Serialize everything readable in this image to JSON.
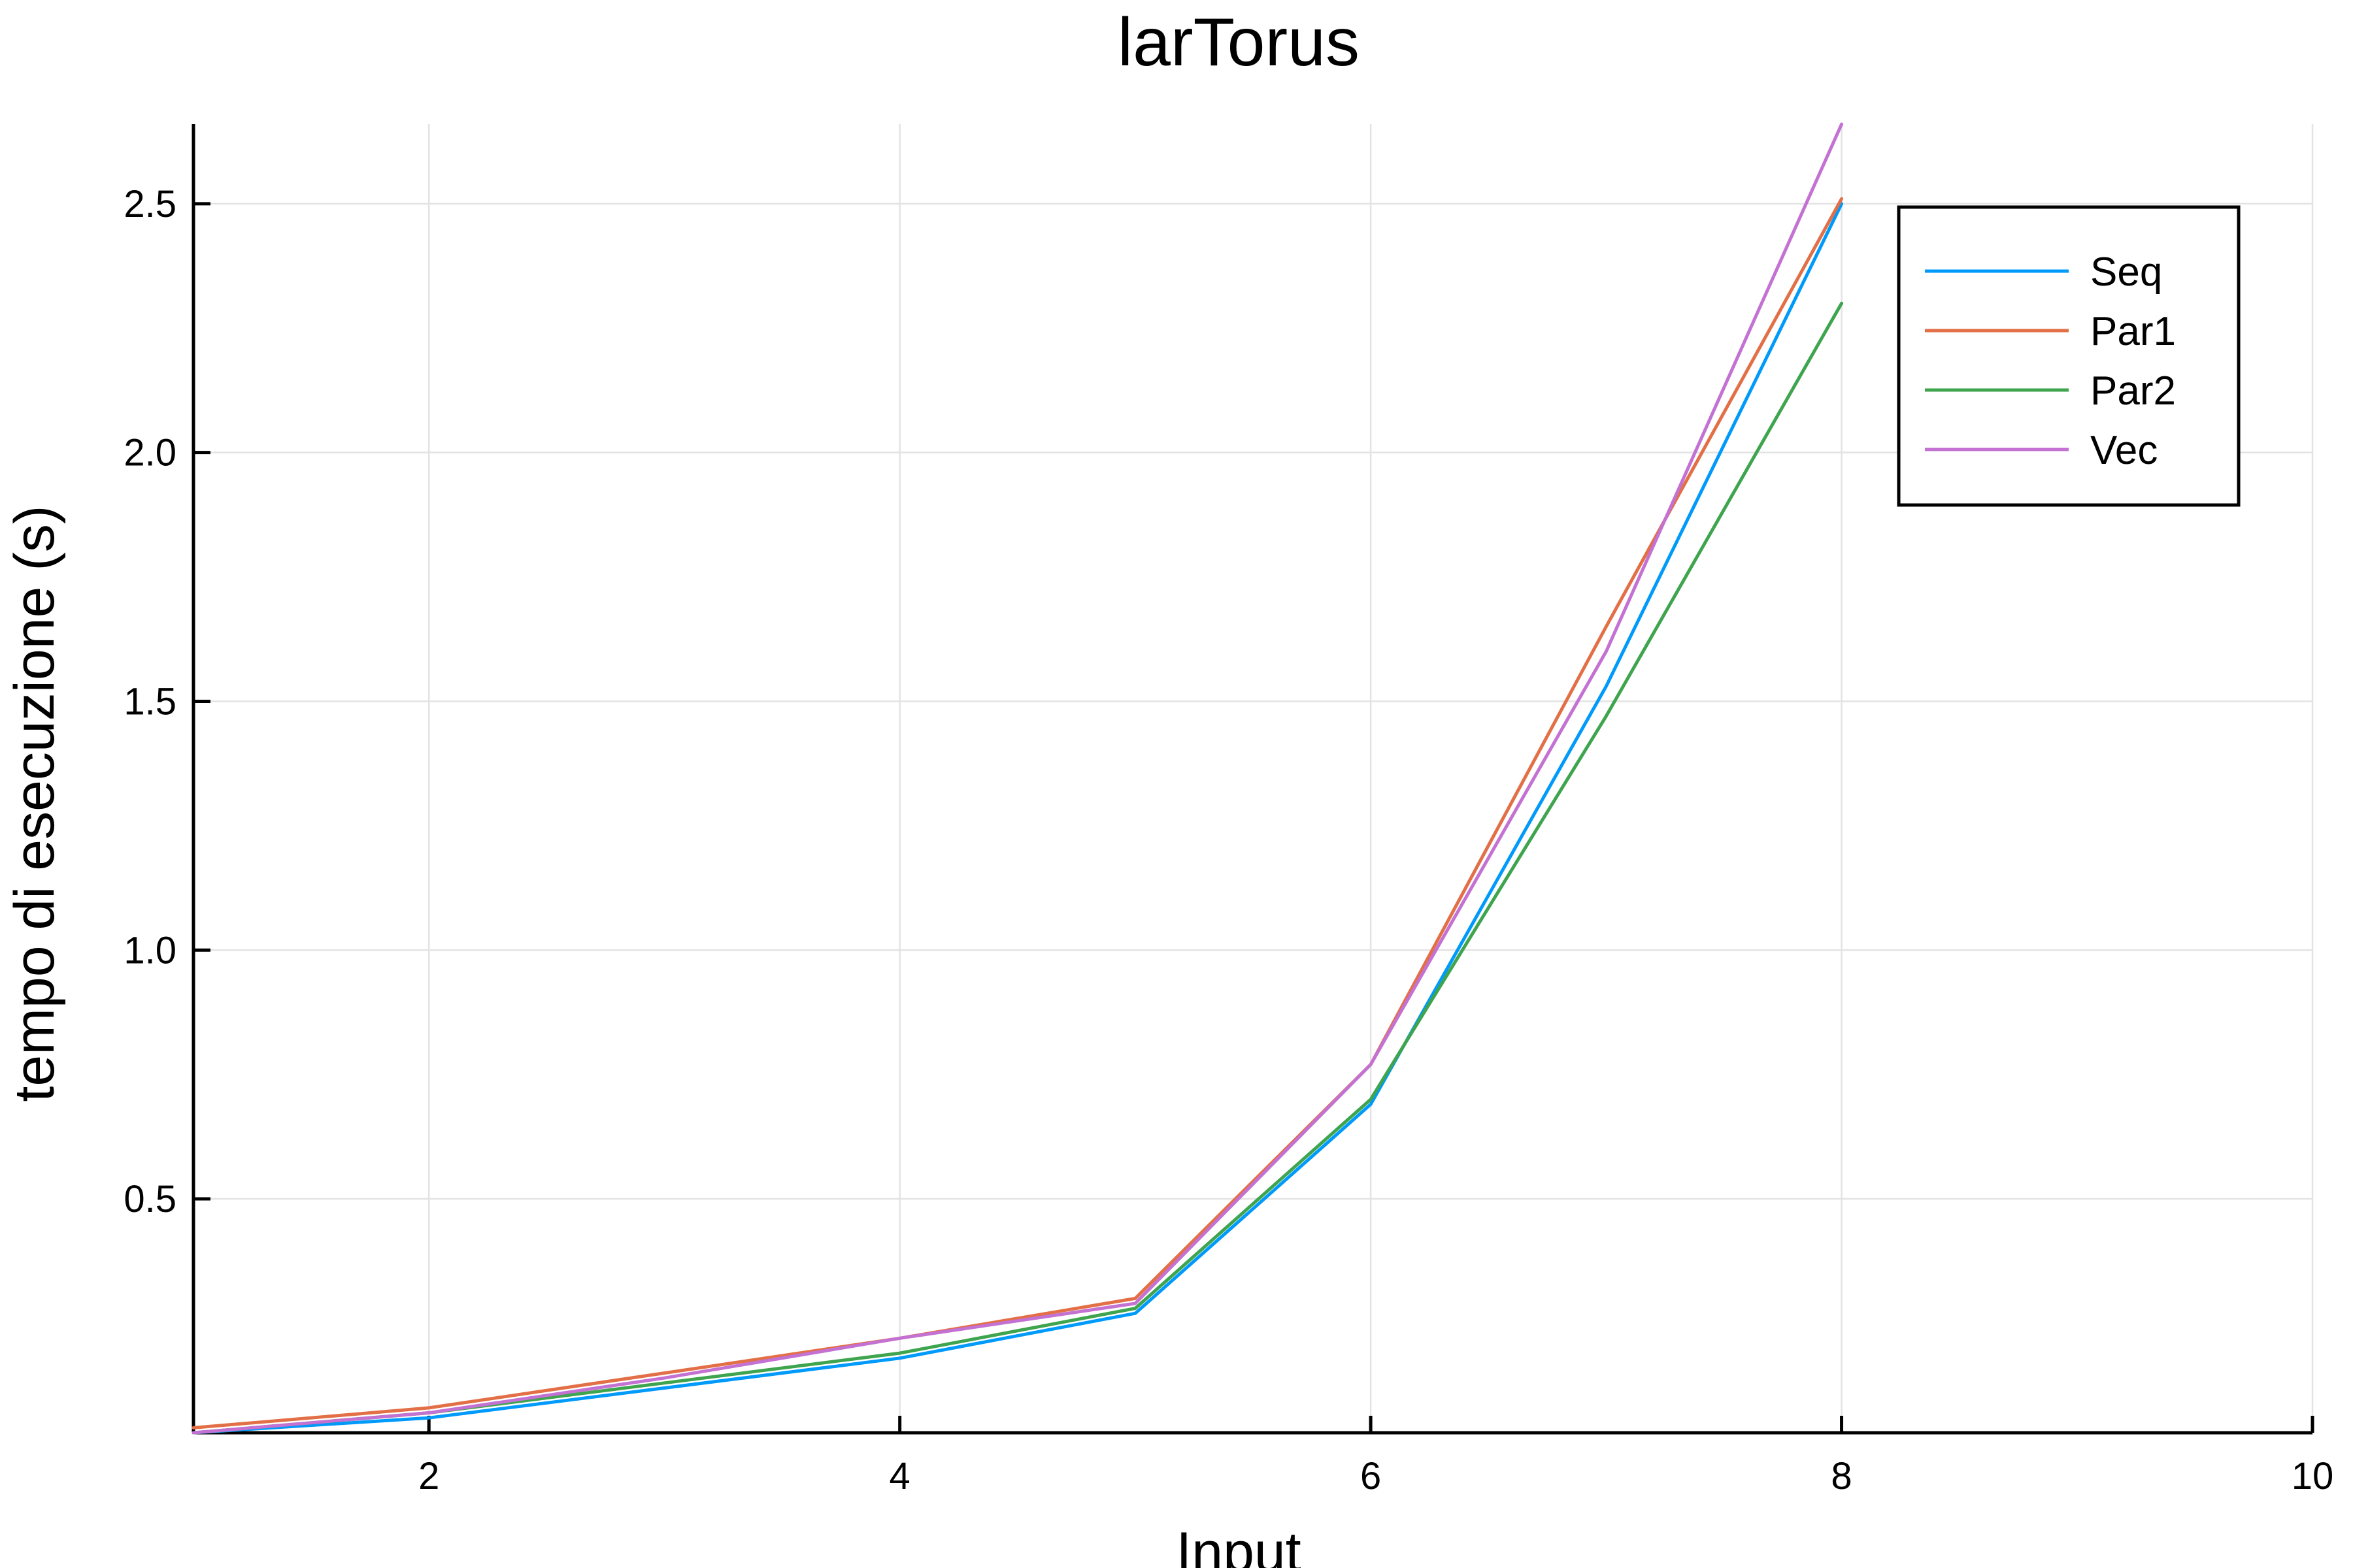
{
  "chart_data": {
    "type": "line",
    "title": "larTorus",
    "xlabel": "Input",
    "ylabel": "tempo di esecuzione (s)",
    "xlim": [
      1,
      10
    ],
    "ylim": [
      0.03,
      2.66
    ],
    "xticks": [
      2,
      4,
      6,
      8,
      10
    ],
    "xtick_labels": [
      "2",
      "4",
      "6",
      "8",
      "10"
    ],
    "yticks": [
      0.5,
      1.0,
      1.5,
      2.0,
      2.5
    ],
    "ytick_labels": [
      "0.5",
      "1.0",
      "1.5",
      "2.0",
      "2.5"
    ],
    "grid": true,
    "legend_position": "top-right",
    "x": [
      1,
      2,
      3,
      4,
      5,
      6,
      7,
      8
    ],
    "series": [
      {
        "name": "Seq",
        "color": "#009AFA",
        "values": [
          0.03,
          0.06,
          0.12,
          0.18,
          0.27,
          0.69,
          1.53,
          2.5
        ]
      },
      {
        "name": "Par1",
        "color": "#E26F46",
        "values": [
          0.04,
          0.08,
          0.15,
          0.22,
          0.3,
          0.77,
          1.65,
          2.51
        ]
      },
      {
        "name": "Par2",
        "color": "#3EA44E",
        "values": [
          0.03,
          0.07,
          0.13,
          0.19,
          0.28,
          0.7,
          1.47,
          2.3
        ]
      },
      {
        "name": "Vec",
        "color": "#C371D2",
        "values": [
          0.03,
          0.07,
          0.14,
          0.22,
          0.29,
          0.77,
          1.6,
          2.66
        ]
      }
    ]
  }
}
